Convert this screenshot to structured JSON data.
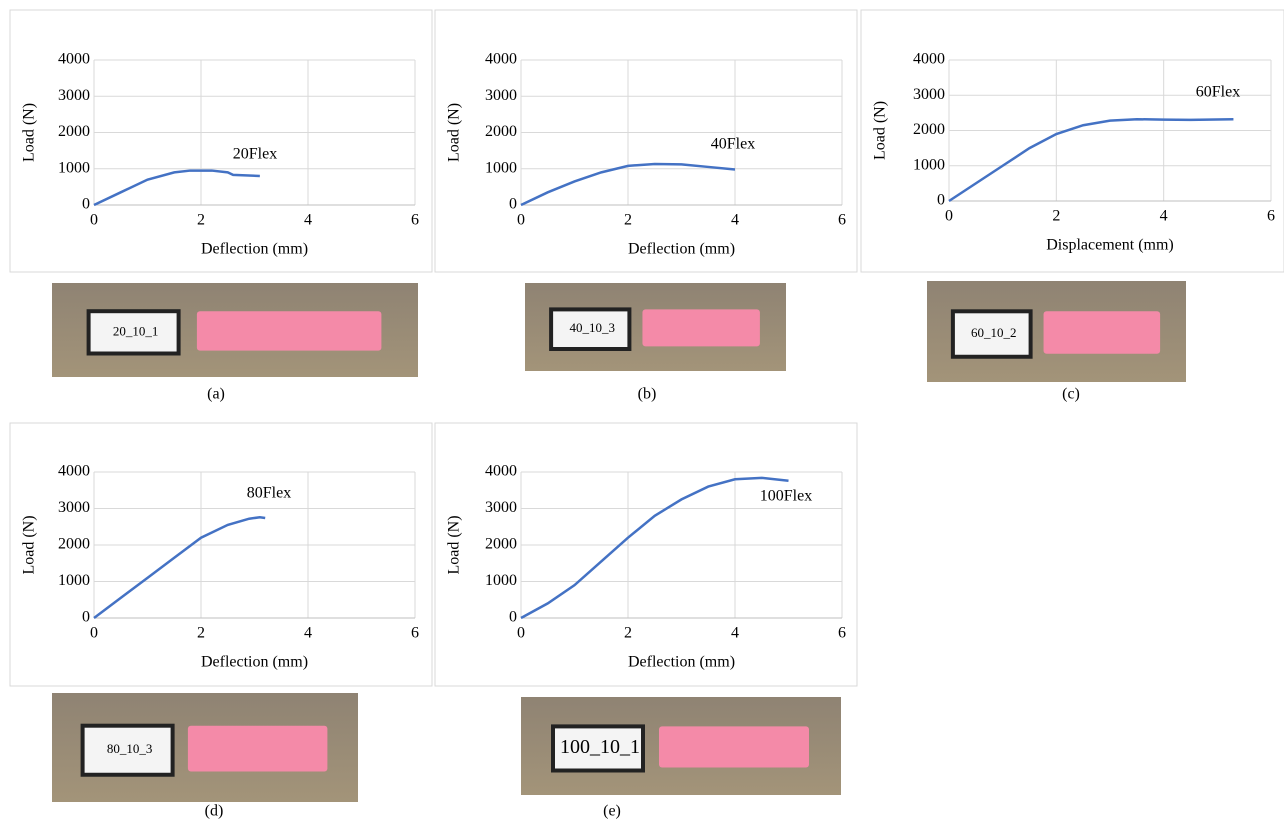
{
  "chart_data": [
    {
      "type": "line",
      "annotation": "20Flex",
      "xlabel": "Deflection (mm)",
      "ylabel": "Load (N)",
      "caption": "(a)",
      "photo_label": "20_10_1",
      "x": [
        0,
        0.5,
        1,
        1.5,
        1.8,
        2.2,
        2.5,
        2.6,
        3.1
      ],
      "values": [
        0,
        350,
        700,
        900,
        950,
        950,
        900,
        830,
        800
      ],
      "color": "#4472c4",
      "xlim": [
        0,
        6
      ],
      "ylim": [
        0,
        4000
      ],
      "xticks": [
        0,
        2,
        4,
        6
      ],
      "yticks": [
        0,
        1000,
        2000,
        3000,
        4000
      ],
      "grid": true
    },
    {
      "type": "line",
      "annotation": "40Flex",
      "xlabel": "Deflection (mm)",
      "ylabel": "Load (N)",
      "caption": "(b)",
      "photo_label": "40_10_3",
      "x": [
        0,
        0.5,
        1,
        1.5,
        2,
        2.5,
        3,
        3.5,
        4
      ],
      "values": [
        0,
        350,
        650,
        900,
        1080,
        1130,
        1120,
        1050,
        980
      ],
      "color": "#4472c4",
      "xlim": [
        0,
        6
      ],
      "ylim": [
        0,
        4000
      ],
      "xticks": [
        0,
        2,
        4,
        6
      ],
      "yticks": [
        0,
        1000,
        2000,
        3000,
        4000
      ],
      "grid": true
    },
    {
      "type": "line",
      "annotation": "60Flex",
      "xlabel": "Displacement (mm)",
      "ylabel": "Load (N)",
      "caption": "(c)",
      "photo_label": "60_10_2",
      "x": [
        0,
        0.5,
        1,
        1.5,
        2,
        2.5,
        3,
        3.5,
        4,
        4.5,
        5.3
      ],
      "values": [
        0,
        500,
        1000,
        1500,
        1900,
        2150,
        2280,
        2320,
        2310,
        2300,
        2320
      ],
      "color": "#4472c4",
      "xlim": [
        0,
        6
      ],
      "ylim": [
        0,
        4000
      ],
      "xticks": [
        0,
        2,
        4,
        6
      ],
      "yticks": [
        0,
        1000,
        2000,
        3000,
        4000
      ],
      "grid": true
    },
    {
      "type": "line",
      "annotation": "80Flex",
      "xlabel": "Deflection (mm)",
      "ylabel": "Load (N)",
      "caption": "(d)",
      "photo_label": "80_10_3",
      "x": [
        0,
        0.5,
        1,
        1.5,
        2,
        2.5,
        2.9,
        3.1,
        3.2
      ],
      "values": [
        0,
        550,
        1100,
        1650,
        2200,
        2550,
        2720,
        2760,
        2740
      ],
      "color": "#4472c4",
      "xlim": [
        0,
        6
      ],
      "ylim": [
        0,
        4000
      ],
      "xticks": [
        0,
        2,
        4,
        6
      ],
      "yticks": [
        0,
        1000,
        2000,
        3000,
        4000
      ],
      "grid": true
    },
    {
      "type": "line",
      "annotation": "100Flex",
      "xlabel": "Deflection (mm)",
      "ylabel": "Load (N)",
      "caption": "(e)",
      "photo_label": "100_10_1",
      "x": [
        0,
        0.5,
        1,
        1.5,
        2,
        2.5,
        3,
        3.5,
        4,
        4.5,
        5
      ],
      "values": [
        0,
        400,
        900,
        1550,
        2200,
        2800,
        3250,
        3600,
        3800,
        3840,
        3760
      ],
      "color": "#4472c4",
      "xlim": [
        0,
        6
      ],
      "ylim": [
        0,
        4000
      ],
      "xticks": [
        0,
        2,
        4,
        6
      ],
      "yticks": [
        0,
        1000,
        2000,
        3000,
        4000
      ],
      "grid": true
    }
  ]
}
